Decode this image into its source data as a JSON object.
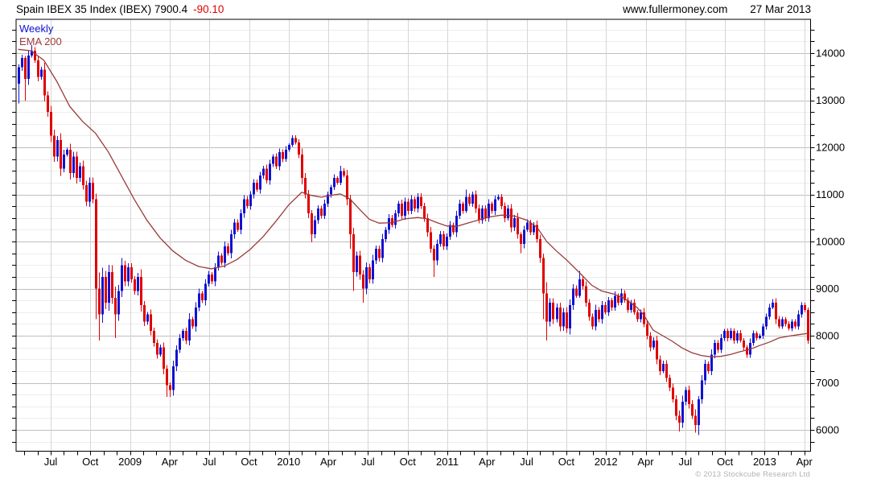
{
  "header": {
    "title": "Spain IBEX 35 Index (IBEX) 7900.4",
    "change": "-90.10",
    "website": "www.fullermoney.com",
    "date": "27 Mar 2013"
  },
  "legend": {
    "timeframe": "Weekly",
    "overlay": "EMA 200"
  },
  "footer": {
    "copyright": "© 2013 Stockcube Research Ltd"
  },
  "chart_data": {
    "type": "candlestick",
    "instrument": "Spain IBEX 35 Index (IBEX)",
    "timeframe": "Weekly",
    "overlay": "EMA 200",
    "last_price": 7900.4,
    "change": -90.1,
    "y_scale": "linear",
    "grid": true,
    "legend_position": "top-left",
    "y_axis": {
      "min": 5540,
      "max": 14720,
      "labels": [
        14000,
        13000,
        12000,
        11000,
        10000,
        9000,
        8000,
        7000,
        6000
      ],
      "major_step": 1000,
      "minor_step": 250,
      "labels_side": "right"
    },
    "x_axis": {
      "labels": [
        "Jul",
        "Oct",
        "2009",
        "Apr",
        "Jul",
        "Oct",
        "2010",
        "Apr",
        "Jul",
        "Oct",
        "2011",
        "Apr",
        "Jul",
        "Oct",
        "2012",
        "Apr",
        "Jul",
        "Oct",
        "2013",
        "Apr"
      ],
      "gridlines": "quarterly",
      "minor_ticks": "monthly"
    },
    "colors": {
      "up": "#1212d2",
      "down": "#e00000",
      "ema": "#9a3b3b",
      "grid_major": "#bfbfbf",
      "grid_minor": "#ededed",
      "grid_vertical": "#d6d6d6",
      "axis": "#000000"
    },
    "series": [
      {
        "name": "IBEX 35 weekly OHLC",
        "type": "candles",
        "first_open": 13350,
        "closes": [
          13700,
          13900,
          13450,
          13950,
          14050,
          13850,
          13500,
          13650,
          13100,
          12750,
          12250,
          11800,
          12150,
          11550,
          11850,
          11950,
          11450,
          11800,
          11350,
          11600,
          11200,
          10850,
          11250,
          10900,
          9000,
          8450,
          9250,
          8700,
          9350,
          8800,
          8450,
          8950,
          9500,
          9150,
          9450,
          9200,
          8950,
          9250,
          8650,
          8300,
          8450,
          8100,
          7850,
          7600,
          7750,
          7300,
          6950,
          6850,
          7350,
          7700,
          7950,
          8100,
          7900,
          8350,
          8200,
          8600,
          8900,
          8750,
          9100,
          9300,
          9150,
          9450,
          9700,
          9550,
          9900,
          9750,
          10150,
          10400,
          10250,
          10600,
          10900,
          10750,
          11000,
          11250,
          11100,
          11400,
          11550,
          11300,
          11650,
          11800,
          11600,
          11900,
          11750,
          11950,
          12050,
          12200,
          12100,
          11850,
          11350,
          11000,
          10600,
          10150,
          10450,
          10700,
          10550,
          10800,
          11000,
          11150,
          11350,
          11250,
          11500,
          11400,
          10900,
          10150,
          9350,
          9700,
          9300,
          9000,
          9450,
          9200,
          9600,
          9850,
          9650,
          10050,
          10250,
          10500,
          10350,
          10600,
          10800,
          10550,
          10850,
          10650,
          10900,
          10700,
          10950,
          10750,
          10500,
          10200,
          9850,
          9600,
          9950,
          10150,
          9900,
          10100,
          10350,
          10200,
          10550,
          10800,
          10650,
          10950,
          10800,
          11000,
          10700,
          10450,
          10700,
          10500,
          10800,
          10650,
          10900,
          10950,
          10750,
          10500,
          10700,
          10300,
          10500,
          10150,
          9950,
          10250,
          10400,
          10200,
          10350,
          10050,
          9650,
          8900,
          8300,
          8700,
          8350,
          8600,
          8200,
          8500,
          8150,
          8650,
          9000,
          8850,
          9200,
          9050,
          8700,
          8400,
          8200,
          8550,
          8350,
          8650,
          8500,
          8750,
          8600,
          8850,
          8700,
          8900,
          8750,
          8550,
          8700,
          8500,
          8350,
          8500,
          8250,
          8000,
          7750,
          7900,
          7500,
          7250,
          7400,
          7100,
          6900,
          6650,
          6300,
          6150,
          6600,
          6850,
          6550,
          6300,
          6100,
          6650,
          7050,
          7400,
          7250,
          7600,
          7850,
          7700,
          7950,
          8100,
          7950,
          8100,
          7900,
          8050,
          7900,
          7750,
          7600,
          7850,
          8050,
          7950,
          8000,
          8200,
          8400,
          8600,
          8700,
          8350,
          8200,
          8350,
          8250,
          8150,
          8300,
          8200,
          8450,
          8650,
          8550,
          7900.4
        ],
        "wick_overrides": {
          "0": [
            60,
            420
          ],
          "2": [
            40,
            460
          ],
          "4": [
            120,
            40
          ],
          "24": [
            120,
            650
          ],
          "25": [
            340,
            550
          ],
          "30": [
            240,
            500
          ],
          "46": [
            80,
            250
          ],
          "47": [
            60,
            150
          ],
          "85": [
            60,
            40
          ],
          "91": [
            70,
            170
          ],
          "100": [
            110,
            50
          ],
          "103": [
            90,
            300
          ],
          "104": [
            140,
            400
          ],
          "107": [
            90,
            300
          ],
          "129": [
            70,
            350
          ],
          "139": [
            150,
            40
          ],
          "156": [
            50,
            200
          ],
          "163": [
            90,
            550
          ],
          "164": [
            240,
            400
          ],
          "174": [
            180,
            50
          ],
          "187": [
            100,
            50
          ],
          "205": [
            110,
            180
          ],
          "210": [
            140,
            160
          ],
          "211": [
            70,
            210
          ],
          "234": [
            76,
            40
          ],
          "245": [
            50,
            70
          ]
        }
      },
      {
        "name": "EMA 200",
        "type": "line",
        "points": [
          [
            0,
            14080
          ],
          [
            4,
            14050
          ],
          [
            8,
            13850
          ],
          [
            12,
            13400
          ],
          [
            16,
            12870
          ],
          [
            20,
            12550
          ],
          [
            24,
            12300
          ],
          [
            28,
            11900
          ],
          [
            32,
            11400
          ],
          [
            36,
            10900
          ],
          [
            40,
            10450
          ],
          [
            44,
            10080
          ],
          [
            48,
            9800
          ],
          [
            52,
            9600
          ],
          [
            56,
            9470
          ],
          [
            60,
            9420
          ],
          [
            64,
            9480
          ],
          [
            68,
            9620
          ],
          [
            72,
            9830
          ],
          [
            76,
            10100
          ],
          [
            80,
            10430
          ],
          [
            84,
            10780
          ],
          [
            88,
            11045
          ],
          [
            91,
            10980
          ],
          [
            94,
            10940
          ],
          [
            97,
            10980
          ],
          [
            100,
            11010
          ],
          [
            103,
            10900
          ],
          [
            106,
            10680
          ],
          [
            109,
            10470
          ],
          [
            112,
            10390
          ],
          [
            116,
            10400
          ],
          [
            120,
            10480
          ],
          [
            124,
            10510
          ],
          [
            127,
            10480
          ],
          [
            130,
            10400
          ],
          [
            133,
            10330
          ],
          [
            136,
            10320
          ],
          [
            139,
            10380
          ],
          [
            142,
            10440
          ],
          [
            146,
            10520
          ],
          [
            150,
            10560
          ],
          [
            154,
            10540
          ],
          [
            158,
            10450
          ],
          [
            161,
            10300
          ],
          [
            164,
            10000
          ],
          [
            167,
            9800
          ],
          [
            170,
            9620
          ],
          [
            174,
            9350
          ],
          [
            178,
            9070
          ],
          [
            181,
            8950
          ],
          [
            185,
            8880
          ],
          [
            188,
            8800
          ],
          [
            192,
            8600
          ],
          [
            194,
            8450
          ],
          [
            197,
            8120
          ],
          [
            200,
            8000
          ],
          [
            203,
            7880
          ],
          [
            206,
            7740
          ],
          [
            209,
            7640
          ],
          [
            212,
            7580
          ],
          [
            215,
            7550
          ],
          [
            218,
            7560
          ],
          [
            221,
            7600
          ],
          [
            224,
            7660
          ],
          [
            227,
            7710
          ],
          [
            230,
            7790
          ],
          [
            233,
            7860
          ],
          [
            236,
            7950
          ],
          [
            239,
            7990
          ],
          [
            242,
            8020
          ],
          [
            245,
            8050
          ]
        ]
      }
    ]
  }
}
